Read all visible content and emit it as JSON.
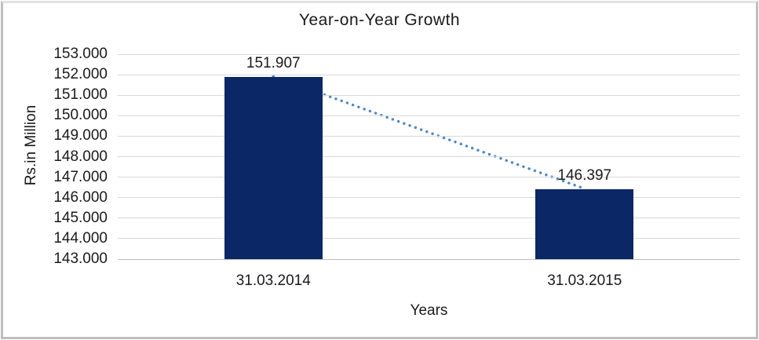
{
  "chart_data": {
    "type": "bar",
    "title": "Year-on-Year Growth",
    "xlabel": "Years",
    "ylabel": "Rs.in Million",
    "categories": [
      "31.03.2014",
      "31.03.2015"
    ],
    "series": [
      {
        "name": "Rs.in Million",
        "values": [
          151.907,
          146.397
        ]
      }
    ],
    "value_labels": [
      "151.907",
      "146.397"
    ],
    "yticks": [
      "153.000",
      "152.000",
      "151.000",
      "150.000",
      "149.000",
      "148.000",
      "147.000",
      "146.000",
      "145.000",
      "144.000",
      "143.000"
    ],
    "ylim": [
      143.0,
      153.0
    ],
    "grid": "horizontal",
    "legend": "none",
    "trendline": {
      "style": "dotted",
      "from_category": "31.03.2014",
      "to_category": "31.03.2015"
    },
    "colors": {
      "bar": "#0C2766",
      "trendline": "#4E86C8",
      "gridline": "#D9D9D9",
      "axis_line": "#BFBFBF",
      "text": "#1A1A1A",
      "frame_border": "#BEBEBE"
    }
  }
}
